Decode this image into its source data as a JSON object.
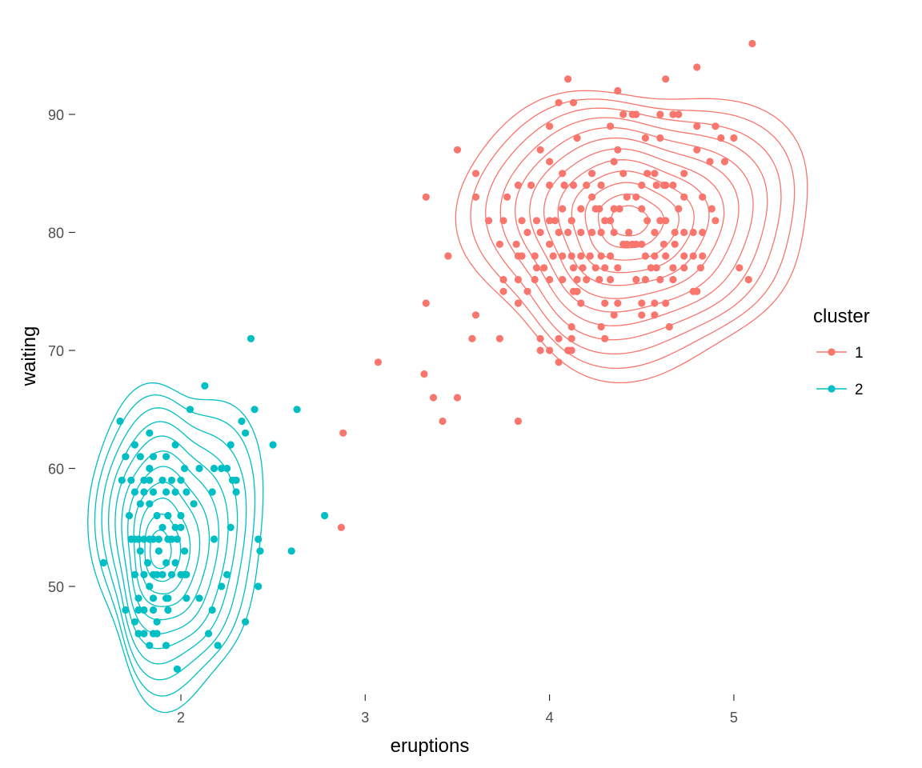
{
  "chart_data": {
    "type": "scatter",
    "title": "",
    "xlabel": "eruptions",
    "ylabel": "waiting",
    "xlim": [
      1.5,
      5.2
    ],
    "ylim": [
      42.5,
      97
    ],
    "x_ticks": [
      2,
      3,
      4,
      5
    ],
    "y_ticks": [
      50,
      60,
      70,
      80,
      90
    ],
    "x_tick_labels": [
      "2",
      "3",
      "4",
      "5"
    ],
    "y_tick_labels": [
      "50",
      "60",
      "70",
      "80",
      "90"
    ],
    "grid": false,
    "legend": {
      "title": "cluster",
      "position": "right"
    },
    "overlay": "2d density contours per cluster",
    "series": [
      {
        "name": "1",
        "color": "#F8766D",
        "density_center": [
          4.43,
          81
        ],
        "points": [
          [
            5.1,
            96
          ],
          [
            4.1,
            93
          ],
          [
            4.63,
            93
          ],
          [
            4.8,
            94
          ],
          [
            4.37,
            92
          ],
          [
            4.0,
            89
          ],
          [
            4.05,
            91
          ],
          [
            4.13,
            91
          ],
          [
            4.4,
            90
          ],
          [
            4.45,
            90
          ],
          [
            4.47,
            90
          ],
          [
            4.33,
            89
          ],
          [
            4.6,
            90
          ],
          [
            4.67,
            90
          ],
          [
            4.7,
            90
          ],
          [
            4.8,
            89
          ],
          [
            4.9,
            89
          ],
          [
            4.93,
            88
          ],
          [
            5.0,
            88
          ],
          [
            4.6,
            88
          ],
          [
            4.52,
            88
          ],
          [
            4.37,
            87
          ],
          [
            4.15,
            88
          ],
          [
            3.95,
            87
          ],
          [
            3.5,
            87
          ],
          [
            4.0,
            86
          ],
          [
            4.8,
            87
          ],
          [
            4.95,
            86
          ],
          [
            4.87,
            86
          ],
          [
            4.35,
            86
          ],
          [
            4.07,
            85
          ],
          [
            3.6,
            85
          ],
          [
            4.53,
            85
          ],
          [
            4.57,
            85
          ],
          [
            4.73,
            85
          ],
          [
            4.62,
            84
          ],
          [
            4.4,
            85
          ],
          [
            4.23,
            85
          ],
          [
            3.33,
            83
          ],
          [
            3.6,
            83
          ],
          [
            3.77,
            83
          ],
          [
            3.83,
            84
          ],
          [
            3.9,
            84
          ],
          [
            4.0,
            84
          ],
          [
            4.08,
            84
          ],
          [
            4.13,
            84
          ],
          [
            4.2,
            84
          ],
          [
            4.23,
            83
          ],
          [
            4.28,
            84
          ],
          [
            4.5,
            84
          ],
          [
            4.58,
            84
          ],
          [
            4.63,
            84
          ],
          [
            4.67,
            84
          ],
          [
            4.73,
            83
          ],
          [
            4.83,
            83
          ],
          [
            4.7,
            82
          ],
          [
            4.5,
            82
          ],
          [
            4.47,
            83
          ],
          [
            4.42,
            83
          ],
          [
            4.38,
            82
          ],
          [
            4.35,
            82
          ],
          [
            4.33,
            81
          ],
          [
            4.3,
            81
          ],
          [
            4.27,
            82
          ],
          [
            4.25,
            82
          ],
          [
            4.17,
            82
          ],
          [
            4.12,
            81
          ],
          [
            4.07,
            82
          ],
          [
            4.03,
            81
          ],
          [
            4.0,
            81
          ],
          [
            3.95,
            80
          ],
          [
            3.85,
            81
          ],
          [
            3.75,
            81
          ],
          [
            3.67,
            81
          ],
          [
            3.73,
            79
          ],
          [
            3.82,
            79
          ],
          [
            3.88,
            80
          ],
          [
            3.93,
            81
          ],
          [
            4.0,
            79
          ],
          [
            4.05,
            80
          ],
          [
            4.1,
            80
          ],
          [
            4.12,
            81
          ],
          [
            4.17,
            80
          ],
          [
            4.23,
            80
          ],
          [
            4.28,
            80
          ],
          [
            4.33,
            81
          ],
          [
            4.35,
            80
          ],
          [
            4.4,
            79
          ],
          [
            4.43,
            80
          ],
          [
            4.47,
            79
          ],
          [
            4.5,
            79
          ],
          [
            4.53,
            81
          ],
          [
            4.57,
            80
          ],
          [
            4.6,
            81
          ],
          [
            4.63,
            81
          ],
          [
            4.68,
            80
          ],
          [
            4.73,
            80
          ],
          [
            4.78,
            80
          ],
          [
            4.83,
            80
          ],
          [
            4.88,
            82
          ],
          [
            4.9,
            81
          ],
          [
            4.62,
            79
          ],
          [
            4.68,
            79
          ],
          [
            3.45,
            78
          ],
          [
            3.83,
            78
          ],
          [
            3.85,
            78
          ],
          [
            3.92,
            78
          ],
          [
            4.02,
            78
          ],
          [
            4.07,
            78
          ],
          [
            4.12,
            78
          ],
          [
            4.17,
            78
          ],
          [
            4.22,
            78
          ],
          [
            4.28,
            78
          ],
          [
            4.33,
            78
          ],
          [
            4.42,
            79
          ],
          [
            4.45,
            79
          ],
          [
            4.52,
            78
          ],
          [
            4.57,
            78
          ],
          [
            4.63,
            78
          ],
          [
            4.73,
            78
          ],
          [
            4.78,
            78
          ],
          [
            4.83,
            78
          ],
          [
            3.93,
            77
          ],
          [
            3.97,
            77
          ],
          [
            4.13,
            77
          ],
          [
            4.18,
            77
          ],
          [
            4.25,
            77
          ],
          [
            4.3,
            77
          ],
          [
            4.37,
            77
          ],
          [
            4.55,
            77
          ],
          [
            4.58,
            77
          ],
          [
            4.67,
            77
          ],
          [
            4.73,
            77
          ],
          [
            4.82,
            77
          ],
          [
            5.03,
            77
          ],
          [
            5.08,
            76
          ],
          [
            3.75,
            76
          ],
          [
            3.83,
            76
          ],
          [
            3.92,
            76
          ],
          [
            4.0,
            76
          ],
          [
            4.07,
            76
          ],
          [
            4.15,
            76
          ],
          [
            4.2,
            76
          ],
          [
            4.27,
            76
          ],
          [
            4.33,
            76
          ],
          [
            4.47,
            76
          ],
          [
            4.52,
            76
          ],
          [
            4.6,
            76
          ],
          [
            4.67,
            76
          ],
          [
            4.78,
            75
          ],
          [
            4.8,
            75
          ],
          [
            3.75,
            75
          ],
          [
            3.88,
            75
          ],
          [
            4.13,
            75
          ],
          [
            4.15,
            75
          ],
          [
            4.17,
            74
          ],
          [
            4.3,
            74
          ],
          [
            4.37,
            74
          ],
          [
            4.5,
            74
          ],
          [
            4.57,
            74
          ],
          [
            4.63,
            74
          ],
          [
            3.33,
            74
          ],
          [
            3.6,
            73
          ],
          [
            3.83,
            74
          ],
          [
            4.35,
            73
          ],
          [
            4.5,
            73
          ],
          [
            4.57,
            73
          ],
          [
            4.65,
            72
          ],
          [
            4.28,
            72
          ],
          [
            4.12,
            72
          ],
          [
            3.58,
            71
          ],
          [
            3.73,
            71
          ],
          [
            3.95,
            71
          ],
          [
            4.05,
            71
          ],
          [
            4.12,
            71
          ],
          [
            4.3,
            71
          ],
          [
            3.95,
            70
          ],
          [
            4.0,
            70
          ],
          [
            4.1,
            70
          ],
          [
            4.12,
            70
          ],
          [
            4.05,
            69
          ],
          [
            3.07,
            69
          ],
          [
            3.32,
            68
          ],
          [
            3.37,
            66
          ],
          [
            3.5,
            66
          ],
          [
            3.42,
            64
          ],
          [
            3.83,
            64
          ],
          [
            2.88,
            63
          ],
          [
            2.87,
            55
          ]
        ]
      },
      {
        "name": "2",
        "color": "#00BFC4",
        "density_center": [
          1.88,
          53
        ],
        "points": [
          [
            2.38,
            71
          ],
          [
            2.13,
            67
          ],
          [
            1.67,
            64
          ],
          [
            2.05,
            65
          ],
          [
            2.33,
            64
          ],
          [
            2.4,
            65
          ],
          [
            2.63,
            65
          ],
          [
            1.83,
            63
          ],
          [
            1.75,
            62
          ],
          [
            1.97,
            62
          ],
          [
            2.27,
            62
          ],
          [
            2.35,
            63
          ],
          [
            2.5,
            62
          ],
          [
            1.7,
            61
          ],
          [
            1.78,
            61
          ],
          [
            1.83,
            60
          ],
          [
            1.85,
            61
          ],
          [
            1.92,
            61
          ],
          [
            2.02,
            60
          ],
          [
            2.1,
            60
          ],
          [
            2.18,
            60
          ],
          [
            2.22,
            60
          ],
          [
            2.25,
            60
          ],
          [
            2.28,
            59
          ],
          [
            2.3,
            59
          ],
          [
            1.68,
            59
          ],
          [
            1.73,
            59
          ],
          [
            1.8,
            59
          ],
          [
            1.83,
            59
          ],
          [
            1.85,
            58
          ],
          [
            1.9,
            59
          ],
          [
            1.92,
            58
          ],
          [
            1.95,
            59
          ],
          [
            1.97,
            58
          ],
          [
            2.0,
            59
          ],
          [
            2.03,
            58
          ],
          [
            1.75,
            58
          ],
          [
            1.78,
            57
          ],
          [
            1.8,
            58
          ],
          [
            1.83,
            57
          ],
          [
            1.87,
            56
          ],
          [
            1.93,
            56
          ],
          [
            2.0,
            56
          ],
          [
            2.07,
            57
          ],
          [
            2.17,
            58
          ],
          [
            2.3,
            58
          ],
          [
            1.72,
            56
          ],
          [
            1.97,
            55
          ],
          [
            2.0,
            55
          ],
          [
            2.27,
            55
          ],
          [
            2.42,
            54
          ],
          [
            1.73,
            54
          ],
          [
            1.75,
            54
          ],
          [
            1.77,
            54
          ],
          [
            1.8,
            54
          ],
          [
            1.83,
            54
          ],
          [
            1.85,
            54
          ],
          [
            1.88,
            54
          ],
          [
            1.9,
            55
          ],
          [
            1.93,
            54
          ],
          [
            1.95,
            54
          ],
          [
            1.98,
            54
          ],
          [
            2.02,
            53
          ],
          [
            2.18,
            54
          ],
          [
            2.43,
            53
          ],
          [
            2.6,
            53
          ],
          [
            1.78,
            53
          ],
          [
            1.82,
            52
          ],
          [
            1.88,
            53
          ],
          [
            1.92,
            52
          ],
          [
            1.97,
            52
          ],
          [
            2.02,
            51
          ],
          [
            1.75,
            51
          ],
          [
            1.8,
            51
          ],
          [
            1.85,
            51
          ],
          [
            1.87,
            51
          ],
          [
            1.9,
            51
          ],
          [
            1.95,
            51
          ],
          [
            2.0,
            51
          ],
          [
            2.03,
            51
          ],
          [
            1.58,
            52
          ],
          [
            1.83,
            50
          ],
          [
            2.25,
            51
          ],
          [
            1.77,
            49
          ],
          [
            1.85,
            49
          ],
          [
            1.92,
            49
          ],
          [
            1.93,
            49
          ],
          [
            2.03,
            49
          ],
          [
            2.1,
            49
          ],
          [
            2.22,
            50
          ],
          [
            2.42,
            50
          ],
          [
            1.7,
            48
          ],
          [
            1.77,
            48
          ],
          [
            1.8,
            48
          ],
          [
            1.85,
            48
          ],
          [
            1.93,
            48
          ],
          [
            2.17,
            48
          ],
          [
            1.75,
            47
          ],
          [
            1.87,
            47
          ],
          [
            2.35,
            47
          ],
          [
            1.77,
            46
          ],
          [
            1.8,
            46
          ],
          [
            1.85,
            46
          ],
          [
            1.87,
            46
          ],
          [
            2.15,
            46
          ],
          [
            1.83,
            45
          ],
          [
            1.92,
            45
          ],
          [
            2.2,
            45
          ],
          [
            1.98,
            43
          ],
          [
            2.78,
            56
          ]
        ]
      }
    ]
  }
}
